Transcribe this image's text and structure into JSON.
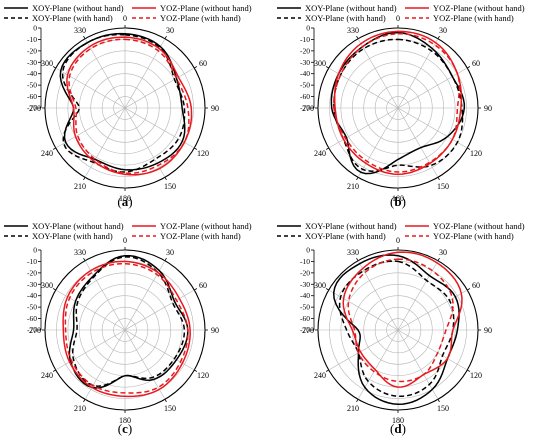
{
  "figure": {
    "legend": {
      "xoy_without": "XOY-Plane (without hand)",
      "yoz_without": "YOZ-Plane (without hand)",
      "xoy_with": "XOY-Plane (with hand)",
      "yoz_with": "YOZ-Plane (with hand)"
    },
    "colors": {
      "xoy": "#000000",
      "yoz": "#e8191e",
      "grid": "#b4b4b4"
    }
  },
  "chart_data": [
    {
      "type": "polar-line",
      "panel_label": "(a)",
      "angle_ticks": [
        "0",
        "30",
        "60",
        "90",
        "120",
        "150",
        "180",
        "210",
        "240",
        "270",
        "300",
        "330"
      ],
      "radial_ticks": [
        "0",
        "-10",
        "-20",
        "-30",
        "-40",
        "-50",
        "-60",
        "-70"
      ],
      "rlim": [
        -70,
        0
      ],
      "series": [
        {
          "name": "XOY-Plane (without hand)",
          "style": "solid",
          "angles": [
            0,
            30,
            60,
            90,
            120,
            150,
            180,
            210,
            240,
            270,
            300,
            330
          ],
          "values": [
            -5,
            -8,
            -18,
            -20,
            -12,
            -14,
            -16,
            -18,
            -10,
            -25,
            -5,
            -4
          ]
        },
        {
          "name": "XOY-Plane (with hand)",
          "style": "dashed",
          "angles": [
            0,
            30,
            60,
            90,
            120,
            150,
            180,
            210,
            240,
            270,
            300,
            330
          ],
          "values": [
            -6,
            -9,
            -20,
            -18,
            -16,
            -18,
            -14,
            -15,
            -8,
            -30,
            -7,
            -4
          ]
        },
        {
          "name": "YOZ-Plane (without hand)",
          "style": "solid",
          "angles": [
            0,
            30,
            60,
            90,
            120,
            150,
            180,
            210,
            240,
            270,
            300,
            330
          ],
          "values": [
            -8,
            -10,
            -16,
            -12,
            -10,
            -9,
            -12,
            -16,
            -20,
            -25,
            -12,
            -8
          ]
        },
        {
          "name": "YOZ-Plane (with hand)",
          "style": "dashed",
          "angles": [
            0,
            30,
            60,
            90,
            120,
            150,
            180,
            210,
            240,
            270,
            300,
            330
          ],
          "values": [
            -10,
            -12,
            -18,
            -15,
            -10,
            -12,
            -13,
            -18,
            -22,
            -27,
            -14,
            -10
          ]
        }
      ]
    },
    {
      "type": "polar-line",
      "panel_label": "(b)",
      "angle_ticks": [
        "0",
        "30",
        "60",
        "90",
        "120",
        "150",
        "180",
        "210",
        "240",
        "270",
        "300",
        "330"
      ],
      "radial_ticks": [
        "0",
        "-10",
        "-20",
        "-30",
        "-40",
        "-50",
        "-60",
        "-70"
      ],
      "rlim": [
        -70,
        0
      ],
      "series": [
        {
          "name": "XOY-Plane (without hand)",
          "style": "solid",
          "angles": [
            0,
            30,
            60,
            90,
            120,
            150,
            180,
            210,
            240,
            270,
            300,
            330
          ],
          "values": [
            -4,
            -10,
            -15,
            -12,
            -20,
            -30,
            -25,
            -5,
            -18,
            -12,
            -10,
            -8
          ]
        },
        {
          "name": "XOY-Plane (with hand)",
          "style": "dashed",
          "angles": [
            0,
            30,
            60,
            90,
            120,
            150,
            180,
            210,
            240,
            270,
            300,
            330
          ],
          "values": [
            -10,
            -12,
            -15,
            -14,
            -10,
            -12,
            -20,
            -8,
            -15,
            -14,
            -12,
            -10
          ]
        },
        {
          "name": "YOZ-Plane (without hand)",
          "style": "solid",
          "angles": [
            0,
            30,
            60,
            90,
            120,
            150,
            180,
            210,
            240,
            270,
            300,
            330
          ],
          "values": [
            -3,
            -4,
            -10,
            -15,
            -15,
            -14,
            -12,
            -14,
            -15,
            -15,
            -10,
            -5
          ]
        },
        {
          "name": "YOZ-Plane (with hand)",
          "style": "dashed",
          "angles": [
            0,
            30,
            60,
            90,
            120,
            150,
            180,
            210,
            240,
            270,
            300,
            330
          ],
          "values": [
            -5,
            -6,
            -10,
            -18,
            -15,
            -15,
            -14,
            -16,
            -17,
            -14,
            -12,
            -8
          ]
        }
      ]
    },
    {
      "type": "polar-line",
      "panel_label": "(c)",
      "angle_ticks": [
        "0",
        "30",
        "60",
        "90",
        "120",
        "150",
        "180",
        "210",
        "240",
        "270",
        "300",
        "330"
      ],
      "radial_ticks": [
        "0",
        "-10",
        "-20",
        "-30",
        "-40",
        "-50",
        "-60",
        "-70"
      ],
      "rlim": [
        -70,
        0
      ],
      "series": [
        {
          "name": "XOY-Plane (without hand)",
          "style": "solid",
          "angles": [
            0,
            30,
            60,
            90,
            120,
            150,
            180,
            210,
            240,
            270,
            300,
            330
          ],
          "values": [
            -5,
            -10,
            -20,
            -15,
            -18,
            -20,
            -30,
            -12,
            -15,
            -25,
            -20,
            -15
          ]
        },
        {
          "name": "XOY-Plane (with hand)",
          "style": "dashed",
          "angles": [
            0,
            30,
            60,
            90,
            120,
            150,
            180,
            210,
            240,
            270,
            300,
            330
          ],
          "values": [
            -6,
            -12,
            -22,
            -18,
            -20,
            -22,
            -30,
            -14,
            -18,
            -28,
            -22,
            -16
          ]
        },
        {
          "name": "YOZ-Plane (without hand)",
          "style": "solid",
          "angles": [
            0,
            30,
            60,
            90,
            120,
            150,
            180,
            210,
            240,
            270,
            300,
            330
          ],
          "values": [
            -10,
            -12,
            -15,
            -13,
            -12,
            -10,
            -12,
            -12,
            -14,
            -16,
            -12,
            -10
          ]
        },
        {
          "name": "YOZ-Plane (with hand)",
          "style": "dashed",
          "angles": [
            0,
            30,
            60,
            90,
            120,
            150,
            180,
            210,
            240,
            270,
            300,
            330
          ],
          "values": [
            -12,
            -14,
            -18,
            -15,
            -14,
            -12,
            -15,
            -14,
            -16,
            -18,
            -14,
            -12
          ]
        }
      ]
    },
    {
      "type": "polar-line",
      "panel_label": "(d)",
      "angle_ticks": [
        "0",
        "30",
        "60",
        "90",
        "120",
        "150",
        "180",
        "210",
        "240",
        "270",
        "300",
        "330"
      ],
      "radial_ticks": [
        "0",
        "-10",
        "-20",
        "-30",
        "-40",
        "-50",
        "-60",
        "-70"
      ],
      "rlim": [
        -70,
        0
      ],
      "series": [
        {
          "name": "XOY-Plane (without hand)",
          "style": "solid",
          "angles": [
            0,
            30,
            60,
            90,
            120,
            150,
            180,
            210,
            240,
            270,
            300,
            330
          ],
          "values": [
            -5,
            -15,
            -12,
            -18,
            -20,
            -10,
            -5,
            -12,
            -30,
            -35,
            -5,
            -3
          ]
        },
        {
          "name": "XOY-Plane (with hand)",
          "style": "dashed",
          "angles": [
            0,
            30,
            60,
            90,
            120,
            150,
            180,
            210,
            240,
            270,
            300,
            330
          ],
          "values": [
            -10,
            -20,
            -18,
            -22,
            -25,
            -15,
            -12,
            -18,
            -30,
            -25,
            -12,
            -10
          ]
        },
        {
          "name": "YOZ-Plane (without hand)",
          "style": "solid",
          "angles": [
            0,
            30,
            60,
            90,
            120,
            150,
            180,
            210,
            240,
            270,
            300,
            330
          ],
          "values": [
            -2,
            -2,
            -6,
            -22,
            -20,
            -25,
            -20,
            -30,
            -32,
            -30,
            -15,
            -8
          ]
        },
        {
          "name": "YOZ-Plane (with hand)",
          "style": "dashed",
          "angles": [
            0,
            30,
            60,
            90,
            120,
            150,
            180,
            210,
            240,
            270,
            300,
            330
          ],
          "values": [
            -8,
            -10,
            -15,
            -28,
            -30,
            -25,
            -25,
            -28,
            -30,
            -32,
            -20,
            -12
          ]
        }
      ]
    }
  ]
}
